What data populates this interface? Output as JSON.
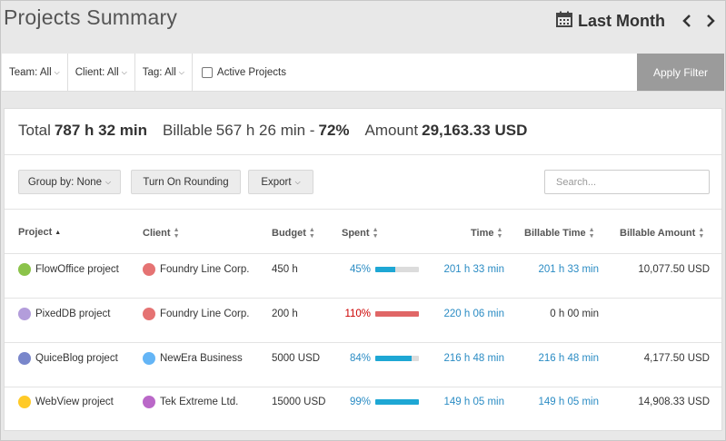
{
  "header": {
    "title": "Projects Summary",
    "period_label": "Last Month"
  },
  "filters": {
    "team": "Team: All",
    "client": "Client: All",
    "tag": "Tag: All",
    "active_projects": "Active Projects",
    "active_checked": false,
    "apply_label": "Apply Filter"
  },
  "summary": {
    "total_label": "Total",
    "total_value": "787 h 32 min",
    "billable_label": "Billable",
    "billable_value": "567 h 26 min -",
    "billable_pct": "72%",
    "amount_label": "Amount",
    "amount_value": "29,163.33 USD"
  },
  "toolbar": {
    "group_by": "Group by: None",
    "rounding": "Turn On Rounding",
    "export": "Export",
    "search_placeholder": "Search..."
  },
  "columns": {
    "project": "Project",
    "client": "Client",
    "budget": "Budget",
    "spent": "Spent",
    "time": "Time",
    "billable_time": "Billable Time",
    "billable_amount": "Billable Amount"
  },
  "rows": [
    {
      "project": "FlowOffice project",
      "project_icon_color": "#8bc34a",
      "client": "Foundry Line Corp.",
      "client_icon_color": "#e57373",
      "budget": "450 h",
      "spent_pct": "45%",
      "spent_fraction": 0.45,
      "spent_color": "#1ea7d4",
      "spent_text_color": "#2b8cc4",
      "time": "201 h 33 min",
      "billable_time": "201 h 33 min",
      "billable_time_link": true,
      "billable_amount": "10,077.50 USD"
    },
    {
      "project": "PixedDB project",
      "project_icon_color": "#b39ddb",
      "client": "Foundry Line Corp.",
      "client_icon_color": "#e57373",
      "budget": "200 h",
      "spent_pct": "110%",
      "spent_fraction": 1.0,
      "spent_color": "#e06666",
      "spent_text_color": "#cc0000",
      "time": "220 h 06 min",
      "billable_time": "0 h 00 min",
      "billable_time_link": false,
      "billable_amount": ""
    },
    {
      "project": "QuiceBlog project",
      "project_icon_color": "#7986cb",
      "client": "NewEra Business",
      "client_icon_color": "#64b5f6",
      "budget": "5000 USD",
      "spent_pct": "84%",
      "spent_fraction": 0.84,
      "spent_color": "#1ea7d4",
      "spent_text_color": "#2b8cc4",
      "time": "216 h 48 min",
      "billable_time": "216 h 48 min",
      "billable_time_link": true,
      "billable_amount": "4,177.50 USD"
    },
    {
      "project": "WebView project",
      "project_icon_color": "#ffca28",
      "client": "Tek Extreme Ltd.",
      "client_icon_color": "#ba68c8",
      "budget": "15000 USD",
      "spent_pct": "99%",
      "spent_fraction": 0.99,
      "spent_color": "#1ea7d4",
      "spent_text_color": "#2b8cc4",
      "time": "149 h 05 min",
      "billable_time": "149 h 05 min",
      "billable_time_link": true,
      "billable_amount": "14,908.33 USD"
    }
  ]
}
